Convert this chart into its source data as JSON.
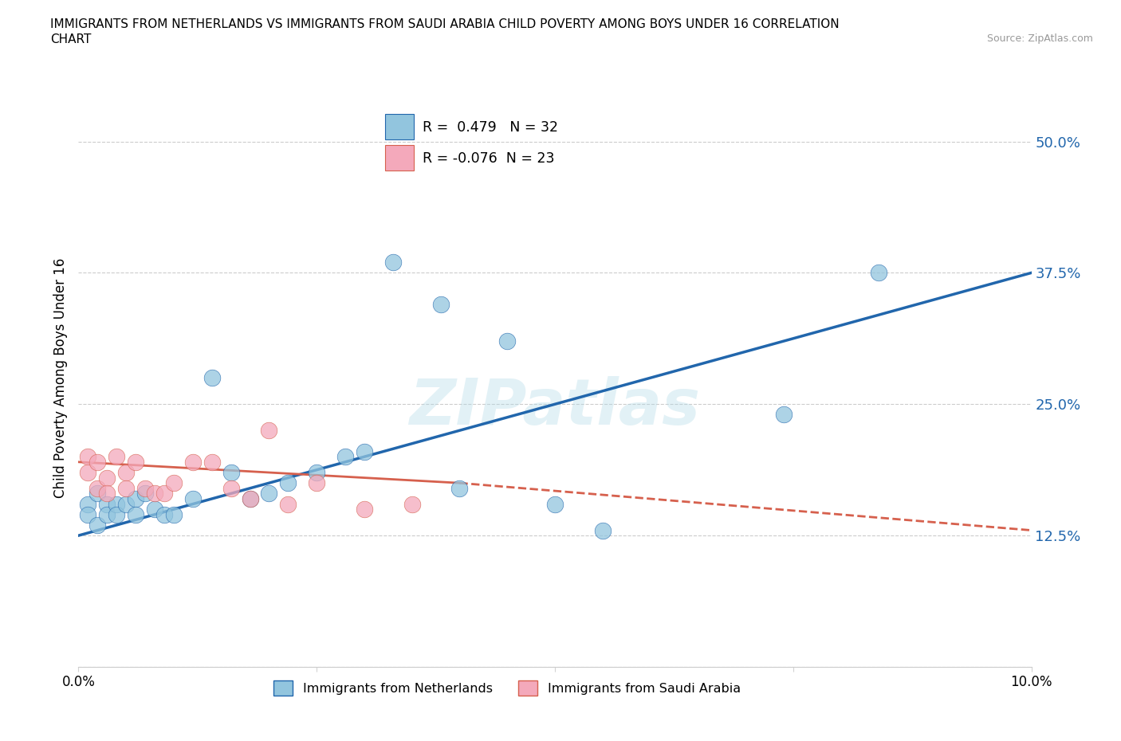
{
  "title_line1": "IMMIGRANTS FROM NETHERLANDS VS IMMIGRANTS FROM SAUDI ARABIA CHILD POVERTY AMONG BOYS UNDER 16 CORRELATION",
  "title_line2": "CHART",
  "source_text": "Source: ZipAtlas.com",
  "ylabel": "Child Poverty Among Boys Under 16",
  "xlim": [
    0.0,
    0.1
  ],
  "ylim": [
    0.0,
    0.55
  ],
  "yticks": [
    0.0,
    0.125,
    0.25,
    0.375,
    0.5
  ],
  "ytick_labels": [
    "",
    "12.5%",
    "25.0%",
    "37.5%",
    "50.0%"
  ],
  "xticks": [
    0.0,
    0.025,
    0.05,
    0.075,
    0.1
  ],
  "xtick_labels": [
    "0.0%",
    "",
    "",
    "",
    "10.0%"
  ],
  "r_netherlands": 0.479,
  "n_netherlands": 32,
  "r_saudi": -0.076,
  "n_saudi": 23,
  "color_netherlands": "#92c5de",
  "color_saudi": "#f4a9bb",
  "trendline_netherlands_color": "#2166ac",
  "trendline_saudi_color": "#d6604d",
  "watermark": "ZIPatlas",
  "netherlands_x": [
    0.001,
    0.001,
    0.002,
    0.002,
    0.003,
    0.003,
    0.004,
    0.004,
    0.005,
    0.006,
    0.006,
    0.007,
    0.008,
    0.009,
    0.01,
    0.012,
    0.014,
    0.016,
    0.018,
    0.02,
    0.022,
    0.025,
    0.028,
    0.03,
    0.033,
    0.038,
    0.04,
    0.045,
    0.05,
    0.055,
    0.074,
    0.084
  ],
  "netherlands_y": [
    0.155,
    0.145,
    0.165,
    0.135,
    0.155,
    0.145,
    0.155,
    0.145,
    0.155,
    0.16,
    0.145,
    0.165,
    0.15,
    0.145,
    0.145,
    0.16,
    0.275,
    0.185,
    0.16,
    0.165,
    0.175,
    0.185,
    0.2,
    0.205,
    0.385,
    0.345,
    0.17,
    0.31,
    0.155,
    0.13,
    0.24,
    0.375
  ],
  "saudi_x": [
    0.001,
    0.001,
    0.002,
    0.002,
    0.003,
    0.003,
    0.004,
    0.005,
    0.005,
    0.006,
    0.007,
    0.008,
    0.009,
    0.01,
    0.012,
    0.014,
    0.016,
    0.018,
    0.02,
    0.022,
    0.025,
    0.03,
    0.035
  ],
  "saudi_y": [
    0.2,
    0.185,
    0.195,
    0.17,
    0.18,
    0.165,
    0.2,
    0.185,
    0.17,
    0.195,
    0.17,
    0.165,
    0.165,
    0.175,
    0.195,
    0.195,
    0.17,
    0.16,
    0.225,
    0.155,
    0.175,
    0.15,
    0.155
  ],
  "trendline_nl_x0": 0.0,
  "trendline_nl_y0": 0.125,
  "trendline_nl_x1": 0.1,
  "trendline_nl_y1": 0.375,
  "trendline_sa_solid_x0": 0.0,
  "trendline_sa_solid_y0": 0.195,
  "trendline_sa_solid_x1": 0.04,
  "trendline_sa_solid_y1": 0.175,
  "trendline_sa_dash_x0": 0.04,
  "trendline_sa_dash_y0": 0.175,
  "trendline_sa_dash_x1": 0.1,
  "trendline_sa_dash_y1": 0.13
}
